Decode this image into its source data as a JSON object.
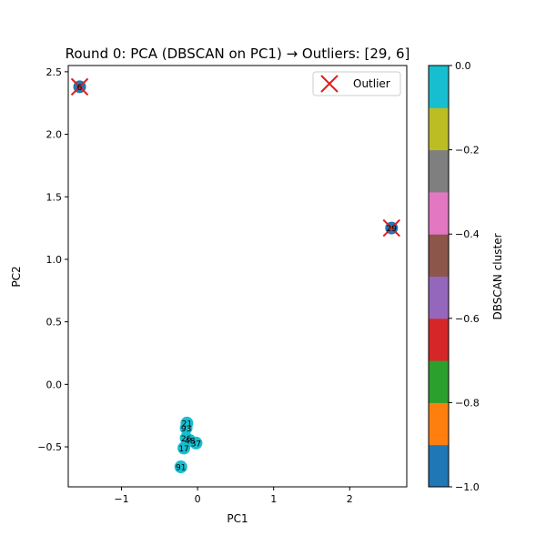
{
  "chart_data": {
    "type": "scatter",
    "title": "Round 0: PCA (DBSCAN on PC1) → Outliers: [29, 6]",
    "xlabel": "PC1",
    "ylabel": "PC2",
    "xlim": [
      -1.7,
      2.75
    ],
    "ylim": [
      -0.82,
      2.55
    ],
    "xticks": [
      -1,
      0,
      1,
      2
    ],
    "yticks": [
      -0.5,
      0.0,
      0.5,
      1.0,
      1.5,
      2.0,
      2.5
    ],
    "xtick_labels": [
      "−1",
      "0",
      "1",
      "2"
    ],
    "ytick_labels": [
      "−0.5",
      "0.0",
      "0.5",
      "1.0",
      "1.5",
      "2.0",
      "2.5"
    ],
    "grid": false,
    "legend": {
      "position": "top-right",
      "entries": [
        {
          "label": "Outlier",
          "marker": "x",
          "color": "#d62728"
        }
      ]
    },
    "colorbar": {
      "label": "DBSCAN cluster",
      "range": [
        -1.0,
        0.0
      ],
      "ticks": [
        -1.0,
        -0.8,
        -0.6,
        -0.4,
        -0.2,
        0.0
      ],
      "tick_labels": [
        "−1.0",
        "−0.8",
        "−0.6",
        "−0.4",
        "−0.2",
        "0.0"
      ],
      "colors": [
        "#1f77b4",
        "#ff7f0e",
        "#2ca02c",
        "#d62728",
        "#9467bd",
        "#8c564b",
        "#e377c2",
        "#7f7f7f",
        "#bcbd22",
        "#17becf"
      ]
    },
    "points": [
      {
        "label": "6",
        "x": -1.55,
        "y": 2.38,
        "cluster": -1,
        "outlier": true
      },
      {
        "label": "29",
        "x": 2.55,
        "y": 1.25,
        "cluster": -1,
        "outlier": true
      },
      {
        "label": "21",
        "x": -0.14,
        "y": -0.31,
        "cluster": 0,
        "outlier": false
      },
      {
        "label": "93",
        "x": -0.15,
        "y": -0.35,
        "cluster": 0,
        "outlier": false
      },
      {
        "label": "26",
        "x": -0.15,
        "y": -0.43,
        "cluster": 0,
        "outlier": false
      },
      {
        "label": "48",
        "x": -0.1,
        "y": -0.45,
        "cluster": 0,
        "outlier": false
      },
      {
        "label": "37",
        "x": -0.02,
        "y": -0.47,
        "cluster": 0,
        "outlier": false
      },
      {
        "label": "17",
        "x": -0.18,
        "y": -0.51,
        "cluster": 0,
        "outlier": false
      },
      {
        "label": "91",
        "x": -0.22,
        "y": -0.66,
        "cluster": 0,
        "outlier": false
      }
    ]
  }
}
